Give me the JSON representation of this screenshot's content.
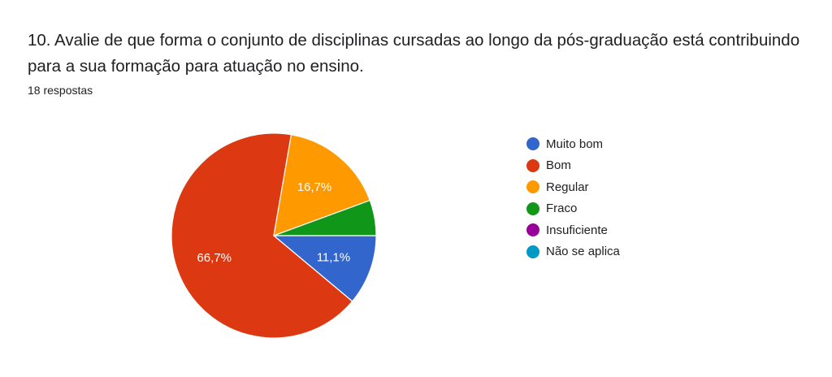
{
  "question": {
    "title": "10. Avalie de que forma o conjunto de disciplinas cursadas ao longo da pós-graduação está contribuindo para a sua formação para atuação no ensino.",
    "responses": "18 respostas"
  },
  "chart_data": {
    "type": "pie",
    "total_responses": 18,
    "slices": [
      {
        "name": "Muito bom",
        "percent": 11.1,
        "label": "11,1%",
        "color": "#3366cc"
      },
      {
        "name": "Bom",
        "percent": 66.7,
        "label": "66,7%",
        "color": "#dc3912"
      },
      {
        "name": "Regular",
        "percent": 16.7,
        "label": "16,7%",
        "color": "#ff9900"
      },
      {
        "name": "Fraco",
        "percent": 5.6,
        "label": "",
        "color": "#109618"
      },
      {
        "name": "Insuficiente",
        "percent": 0,
        "label": "",
        "color": "#990099"
      },
      {
        "name": "Não se aplica",
        "percent": 0,
        "label": "",
        "color": "#0099c6"
      }
    ],
    "legend_position": "right"
  }
}
